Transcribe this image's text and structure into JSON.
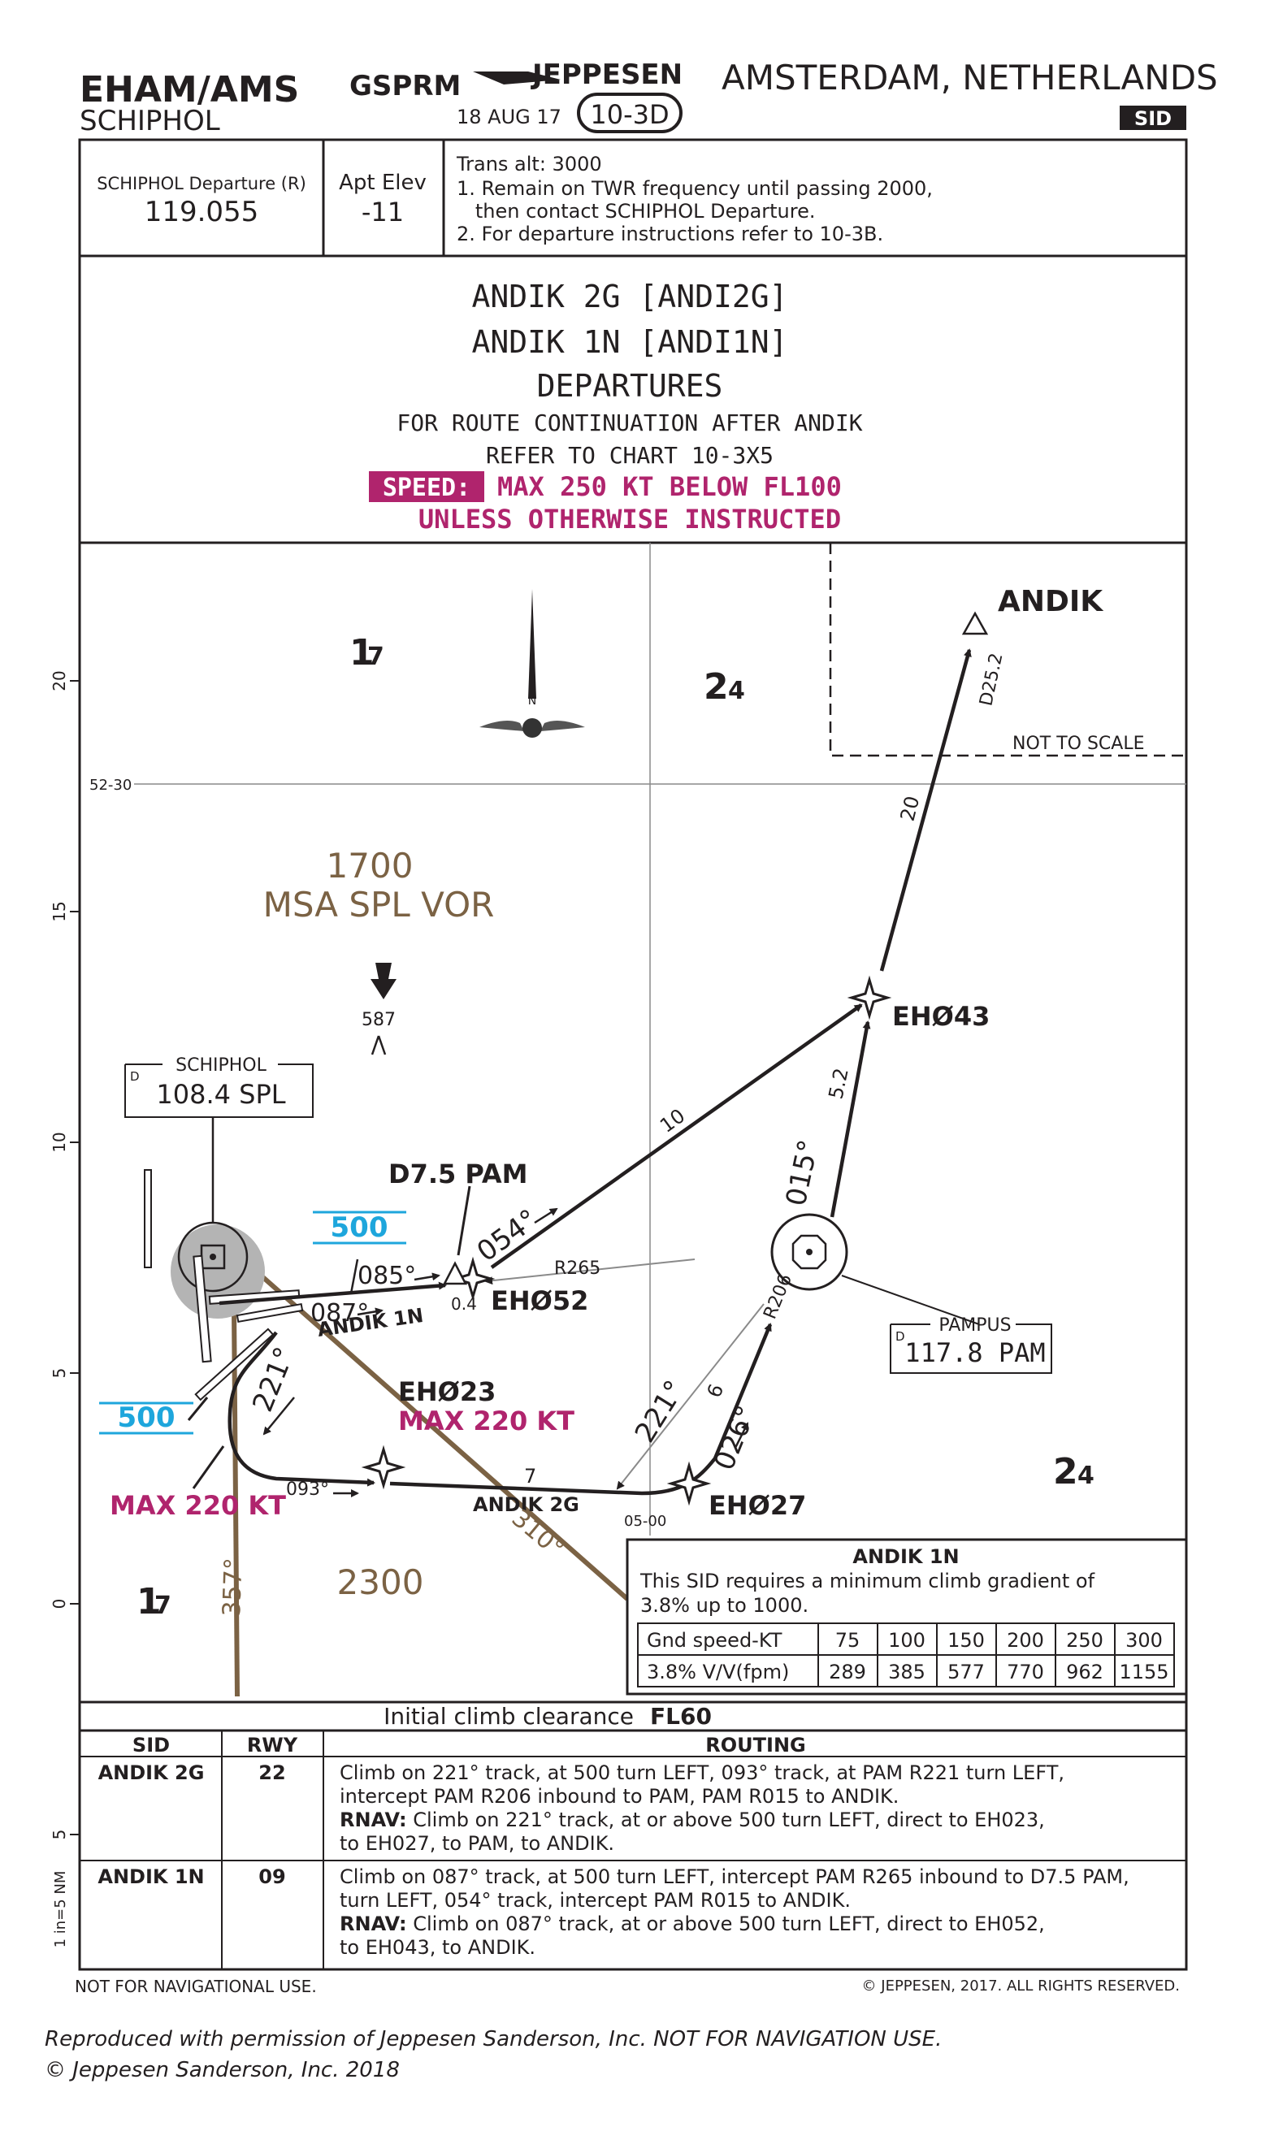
{
  "header": {
    "icao_iata": "EHAM/AMS",
    "airport": "SCHIPHOL",
    "proc_code": "GSPRM",
    "publisher": "JEPPESEN",
    "city": "AMSTERDAM, NETHERLANDS",
    "date": "18 AUG 17",
    "chart_no": "10-3D",
    "chart_type": "SID"
  },
  "comms": {
    "departure_label": "SCHIPHOL Departure (R)",
    "departure_freq": "119.055",
    "elev_label": "Apt Elev",
    "elev_value": "-11",
    "notes": [
      "Trans alt: 3000",
      "1. Remain on TWR frequency until passing 2000,",
      "   then contact SCHIPHOL Departure.",
      "2. For departure instructions refer to 10-3B."
    ]
  },
  "title": {
    "line1": "ANDIK 2G [ANDI2G]",
    "line2": "ANDIK 1N [ANDI1N]",
    "line3": "DEPARTURES",
    "line4": "FOR ROUTE CONTINUATION AFTER ANDIK",
    "line5": "REFER TO CHART 10-3X5",
    "speed_tag": "SPEED:",
    "speed_text": "MAX 250 KT BELOW FL100",
    "speed_text2": "UNLESS OTHERWISE INSTRUCTED"
  },
  "plan": {
    "grid_labels": [
      "1",
      "7",
      "2",
      "4",
      "2",
      "4",
      "1",
      "7"
    ],
    "lat_label": "52-30",
    "scale_ticks": [
      "20",
      "15",
      "10",
      "5",
      "0",
      "5"
    ],
    "scale_note": "1 in=5 NM",
    "msa": "1700",
    "msa_label": "MSA SPL VOR",
    "obstacle": "587",
    "north": "N",
    "alt_2300": "2300",
    "not_to_scale": "NOT TO SCALE",
    "fixes": {
      "andik": "ANDIK",
      "eh043": "EHØ43",
      "eh052": "EHØ52",
      "eh023": "EHØ23",
      "eh027": "EHØ27",
      "d75": "D7.5 PAM"
    },
    "navaids": {
      "spl_name": "SCHIPHOL",
      "spl_freq": "108.4 SPL",
      "spl_d": "D",
      "pam_name": "PAMPUS",
      "pam_freq": "117.8 PAM",
      "pam_d": "D"
    },
    "labels": {
      "d25": "D25.2",
      "leg20": "20",
      "leg10": "10",
      "leg52": "5.2",
      "leg7": "7",
      "leg6": "6",
      "crs015": "015°",
      "crs054": "054°",
      "crs085": "085°",
      "crs087": "087°",
      "crs093": "093°",
      "crs221a": "221°",
      "crs221b": "221°",
      "crs026": "026°",
      "crs310": "310°",
      "crs357": "357°",
      "r265": "R265",
      "r206": "R206",
      "d04": "0.4",
      "andik1n": "ANDIK 1N",
      "andik2g": "ANDIK 2G",
      "latlon": "05-00",
      "alt500a": "500",
      "alt500b": "500",
      "max220a": "MAX 220 KT",
      "max220b": "MAX 220 KT"
    },
    "climb_box": {
      "title": "ANDIK 1N",
      "text1": "This SID requires a minimum climb gradient of",
      "text2": "3.8% up to  1000.",
      "row1_label": "Gnd speed-KT",
      "row2_label": "3.8% V/V(fpm)",
      "speeds": [
        "75",
        "100",
        "150",
        "200",
        "250",
        "300"
      ],
      "fpm": [
        "289",
        "385",
        "577",
        "770",
        "962",
        "1155"
      ]
    }
  },
  "initial_climb": {
    "label": "Initial climb clearance",
    "value": "FL60"
  },
  "table": {
    "headers": {
      "sid": "SID",
      "rwy": "RWY",
      "routing": "ROUTING"
    },
    "rows": [
      {
        "sid": "ANDIK 2G",
        "rwy": "22",
        "line1": "Climb on 221° track, at 500 turn LEFT, 093° track, at PAM R221 turn LEFT,",
        "line2": "intercept PAM R206 inbound to PAM, PAM R015 to ANDIK.",
        "rnav_tag": "RNAV:",
        "line3": " Climb on 221° track, at or above 500 turn LEFT, direct to EH023,",
        "line4": "to EH027, to PAM, to ANDIK."
      },
      {
        "sid": "ANDIK 1N",
        "rwy": "09",
        "line1": "Climb on 087° track, at 500 turn LEFT, intercept PAM R265 inbound to D7.5 PAM,",
        "line2": "turn LEFT, 054° track, intercept PAM R015 to ANDIK.",
        "rnav_tag": "RNAV:",
        "line3": " Climb on 087° track, at or above 500 turn LEFT, direct to EH052,",
        "line4": "to EH043, to ANDIK."
      }
    ]
  },
  "footer": {
    "left": "NOT FOR NAVIGATIONAL USE.",
    "right": "© JEPPESEN, 2017. ALL RIGHTS RESERVED.",
    "note1": "Reproduced with permission of Jeppesen Sanderson, Inc. NOT FOR NAVIGATION USE.",
    "note2": "© Jeppesen Sanderson, Inc. 2018"
  },
  "colors": {
    "ink": "#231f20",
    "magenta": "#b0246d",
    "cyan": "#1ea6dc",
    "brown": "#7b6244",
    "airport_halo": "#b4b4b4"
  }
}
